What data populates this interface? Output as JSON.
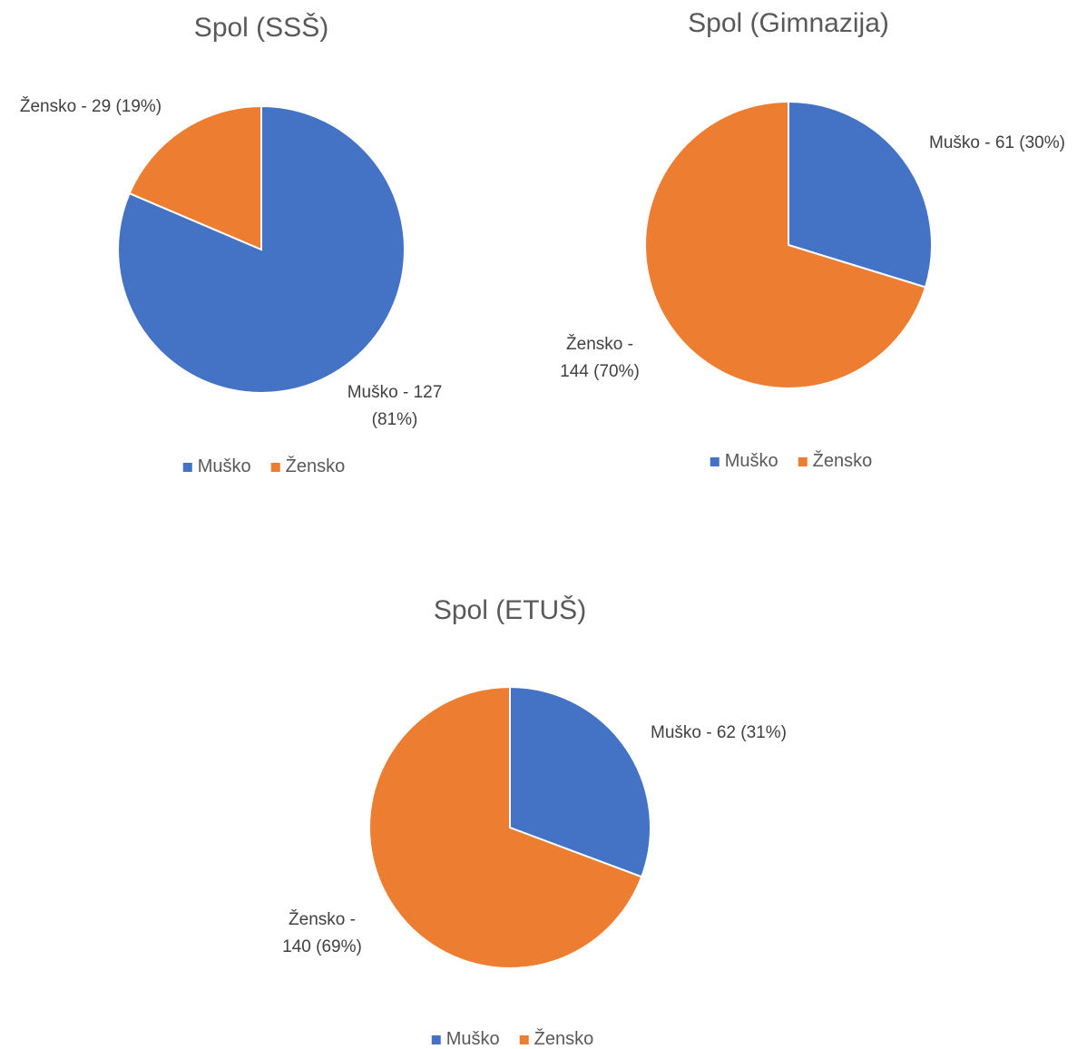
{
  "chart_data": [
    {
      "type": "pie",
      "title": "Spol (SSŠ)",
      "categories": [
        "Muško",
        "Žensko"
      ],
      "values": [
        127,
        29
      ],
      "value_labels": [
        "Muško - 127 (81%)",
        "Žensko - 29 (19%)"
      ],
      "colors": [
        "#4472c4",
        "#ed7d31"
      ],
      "legend": "bottom"
    },
    {
      "type": "pie",
      "title": "Spol (Gimnazija)",
      "categories": [
        "Muško",
        "Žensko"
      ],
      "values": [
        61,
        144
      ],
      "value_labels": [
        "Muško - 61 (30%)",
        "Žensko - 144 (70%)"
      ],
      "colors": [
        "#4472c4",
        "#ed7d31"
      ],
      "legend": "bottom"
    },
    {
      "type": "pie",
      "title": "Spol (ETUŠ)",
      "categories": [
        "Muško",
        "Žensko"
      ],
      "values": [
        62,
        140
      ],
      "value_labels": [
        "Muško - 62 (31%)",
        "Žensko - 140 (69%)"
      ],
      "colors": [
        "#4472c4",
        "#ed7d31"
      ],
      "legend": "bottom"
    }
  ]
}
